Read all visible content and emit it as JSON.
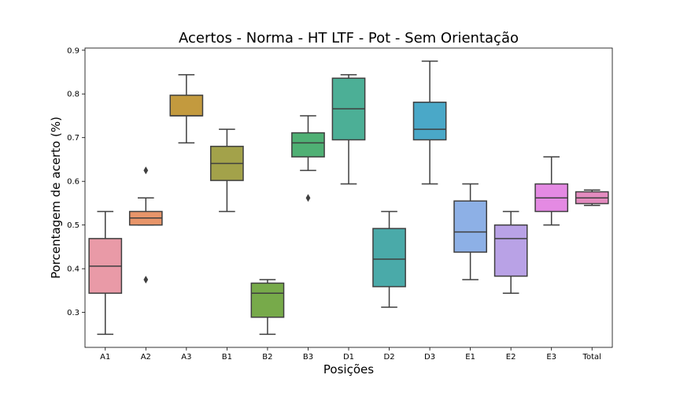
{
  "chart_data": {
    "type": "box",
    "title": "Acertos - Norma - HT LTF - Pot - Sem Orientação",
    "xlabel": "Posições",
    "ylabel": "Porcentagem de acerto (%)",
    "ylim": [
      0.22,
      0.905
    ],
    "yticks": [
      "0.3",
      "0.4",
      "0.5",
      "0.6",
      "0.7",
      "0.8",
      "0.9"
    ],
    "grid": false,
    "categories": [
      "A1",
      "A2",
      "A3",
      "B1",
      "B2",
      "B3",
      "D1",
      "D2",
      "D3",
      "E1",
      "E2",
      "E3",
      "Total"
    ],
    "boxes": [
      {
        "category": "A1",
        "whisker_low": 0.25,
        "q1": 0.344,
        "median": 0.406,
        "q3": 0.469,
        "whisker_high": 0.531,
        "outliers": [],
        "color": "#e99aa7"
      },
      {
        "category": "A2",
        "whisker_low": 0.5,
        "q1": 0.5,
        "median": 0.516,
        "q3": 0.531,
        "whisker_high": 0.562,
        "outliers": [
          0.625,
          0.375
        ],
        "color": "#e8956a"
      },
      {
        "category": "A3",
        "whisker_low": 0.688,
        "q1": 0.75,
        "median": 0.75,
        "q3": 0.797,
        "whisker_high": 0.844,
        "outliers": [],
        "color": "#c39a3e"
      },
      {
        "category": "B1",
        "whisker_low": 0.531,
        "q1": 0.602,
        "median": 0.641,
        "q3": 0.68,
        "whisker_high": 0.719,
        "outliers": [],
        "color": "#a3a24a"
      },
      {
        "category": "B2",
        "whisker_low": 0.25,
        "q1": 0.289,
        "median": 0.344,
        "q3": 0.367,
        "whisker_high": 0.375,
        "outliers": [],
        "color": "#77aa4a"
      },
      {
        "category": "B3",
        "whisker_low": 0.625,
        "q1": 0.656,
        "median": 0.688,
        "q3": 0.711,
        "whisker_high": 0.75,
        "outliers": [
          0.562
        ],
        "color": "#4fb074"
      },
      {
        "category": "D1",
        "whisker_low": 0.594,
        "q1": 0.695,
        "median": 0.766,
        "q3": 0.836,
        "whisker_high": 0.844,
        "outliers": [],
        "color": "#4caf96"
      },
      {
        "category": "D2",
        "whisker_low": 0.312,
        "q1": 0.359,
        "median": 0.422,
        "q3": 0.492,
        "whisker_high": 0.531,
        "outliers": [],
        "color": "#4aaaa9"
      },
      {
        "category": "D3",
        "whisker_low": 0.594,
        "q1": 0.695,
        "median": 0.719,
        "q3": 0.781,
        "whisker_high": 0.875,
        "outliers": [],
        "color": "#4aa8c8"
      },
      {
        "category": "E1",
        "whisker_low": 0.375,
        "q1": 0.438,
        "median": 0.484,
        "q3": 0.555,
        "whisker_high": 0.594,
        "outliers": [],
        "color": "#8db0e6"
      },
      {
        "category": "E2",
        "whisker_low": 0.344,
        "q1": 0.383,
        "median": 0.469,
        "q3": 0.5,
        "whisker_high": 0.531,
        "outliers": [],
        "color": "#b9a2e6"
      },
      {
        "category": "E3",
        "whisker_low": 0.5,
        "q1": 0.531,
        "median": 0.562,
        "q3": 0.594,
        "whisker_high": 0.656,
        "outliers": [],
        "color": "#e48ae3"
      },
      {
        "category": "Total",
        "whisker_low": 0.545,
        "q1": 0.549,
        "median": 0.562,
        "q3": 0.576,
        "whisker_high": 0.58,
        "outliers": [],
        "color": "#e48bbf"
      }
    ]
  }
}
